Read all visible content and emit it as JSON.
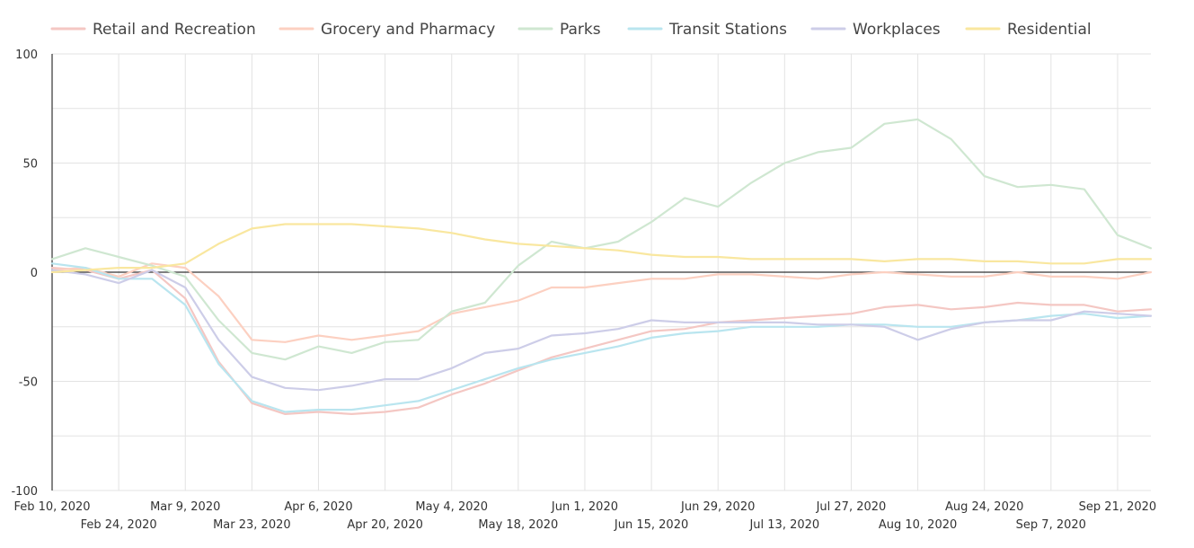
{
  "chart_data": {
    "type": "line",
    "title": "",
    "xlabel": "",
    "ylabel": "",
    "ylim": [
      -100,
      100
    ],
    "y_ticks": [
      100,
      50,
      0,
      -50,
      -100
    ],
    "y_tick_labels": [
      "100",
      "50",
      "0",
      "-50",
      "-100"
    ],
    "grid": true,
    "legend_position": "top",
    "x_ticks": [
      {
        "label": "Feb 10, 2020",
        "index": 0
      },
      {
        "label": "Feb 24, 2020",
        "index": 2
      },
      {
        "label": "Mar 9, 2020",
        "index": 4
      },
      {
        "label": "Mar 23, 2020",
        "index": 6
      },
      {
        "label": "Apr 6, 2020",
        "index": 8
      },
      {
        "label": "Apr 20, 2020",
        "index": 10
      },
      {
        "label": "May 4, 2020",
        "index": 12
      },
      {
        "label": "May 18, 2020",
        "index": 14
      },
      {
        "label": "Jun 1, 2020",
        "index": 16
      },
      {
        "label": "Jun 15, 2020",
        "index": 18
      },
      {
        "label": "Jun 29, 2020",
        "index": 20
      },
      {
        "label": "Jul 13, 2020",
        "index": 22
      },
      {
        "label": "Jul 27, 2020",
        "index": 24
      },
      {
        "label": "Aug 10, 2020",
        "index": 26
      },
      {
        "label": "Aug 24, 2020",
        "index": 28
      },
      {
        "label": "Sep 7, 2020",
        "index": 30
      },
      {
        "label": "Sep 21, 2020",
        "index": 32
      }
    ],
    "x": [
      "Feb 10, 2020",
      "Feb 17, 2020",
      "Feb 24, 2020",
      "Mar 2, 2020",
      "Mar 9, 2020",
      "Mar 16, 2020",
      "Mar 23, 2020",
      "Mar 30, 2020",
      "Apr 6, 2020",
      "Apr 13, 2020",
      "Apr 20, 2020",
      "Apr 27, 2020",
      "May 4, 2020",
      "May 11, 2020",
      "May 18, 2020",
      "May 25, 2020",
      "Jun 1, 2020",
      "Jun 8, 2020",
      "Jun 15, 2020",
      "Jun 22, 2020",
      "Jun 29, 2020",
      "Jul 6, 2020",
      "Jul 13, 2020",
      "Jul 20, 2020",
      "Jul 27, 2020",
      "Aug 3, 2020",
      "Aug 10, 2020",
      "Aug 17, 2020",
      "Aug 24, 2020",
      "Aug 31, 2020",
      "Sep 7, 2020",
      "Sep 14, 2020",
      "Sep 21, 2020",
      "Sep 28, 2020"
    ],
    "series": [
      {
        "name": "Retail and Recreation",
        "color": "#f4c7c3",
        "values": [
          2,
          1,
          -3,
          1,
          -12,
          -41,
          -60,
          -65,
          -64,
          -65,
          -64,
          -62,
          -56,
          -51,
          -45,
          -39,
          -35,
          -31,
          -27,
          -26,
          -23,
          -22,
          -21,
          -20,
          -19,
          -16,
          -15,
          -17,
          -16,
          -14,
          -15,
          -15,
          -18,
          -17
        ]
      },
      {
        "name": "Grocery and Pharmacy",
        "color": "#fcd0c1",
        "values": [
          1,
          2,
          -2,
          4,
          2,
          -11,
          -31,
          -32,
          -29,
          -31,
          -29,
          -27,
          -19,
          -16,
          -13,
          -7,
          -7,
          -5,
          -3,
          -3,
          -1,
          -1,
          -2,
          -3,
          -1,
          0,
          -1,
          -2,
          -2,
          0,
          -2,
          -2,
          -3,
          0
        ]
      },
      {
        "name": "Parks",
        "color": "#cfe7d1",
        "values": [
          6,
          11,
          7,
          3,
          -2,
          -22,
          -37,
          -40,
          -34,
          -37,
          -32,
          -31,
          -18,
          -14,
          3,
          14,
          11,
          14,
          23,
          34,
          30,
          41,
          50,
          55,
          57,
          68,
          70,
          61,
          44,
          39,
          40,
          38,
          17,
          11
        ]
      },
      {
        "name": "Transit Stations",
        "color": "#b9e5ef",
        "values": [
          4,
          2,
          -3,
          -3,
          -15,
          -42,
          -59,
          -64,
          -63,
          -63,
          -61,
          -59,
          -54,
          -49,
          -44,
          -40,
          -37,
          -34,
          -30,
          -28,
          -27,
          -25,
          -25,
          -25,
          -24,
          -24,
          -25,
          -25,
          -23,
          -22,
          -20,
          -19,
          -21,
          -20
        ]
      },
      {
        "name": "Workplaces",
        "color": "#cdcde8",
        "values": [
          1,
          -1,
          -5,
          1,
          -7,
          -31,
          -48,
          -53,
          -54,
          -52,
          -49,
          -49,
          -44,
          -37,
          -35,
          -29,
          -28,
          -26,
          -22,
          -23,
          -23,
          -23,
          -23,
          -24,
          -24,
          -25,
          -31,
          -26,
          -23,
          -22,
          -22,
          -18,
          -19,
          -20
        ]
      },
      {
        "name": "Residential",
        "color": "#f9e79f",
        "values": [
          0,
          1,
          2,
          2,
          4,
          13,
          20,
          22,
          22,
          22,
          21,
          20,
          18,
          15,
          13,
          12,
          11,
          10,
          8,
          7,
          7,
          6,
          6,
          6,
          6,
          5,
          6,
          6,
          5,
          5,
          4,
          4,
          6,
          6
        ]
      }
    ]
  }
}
